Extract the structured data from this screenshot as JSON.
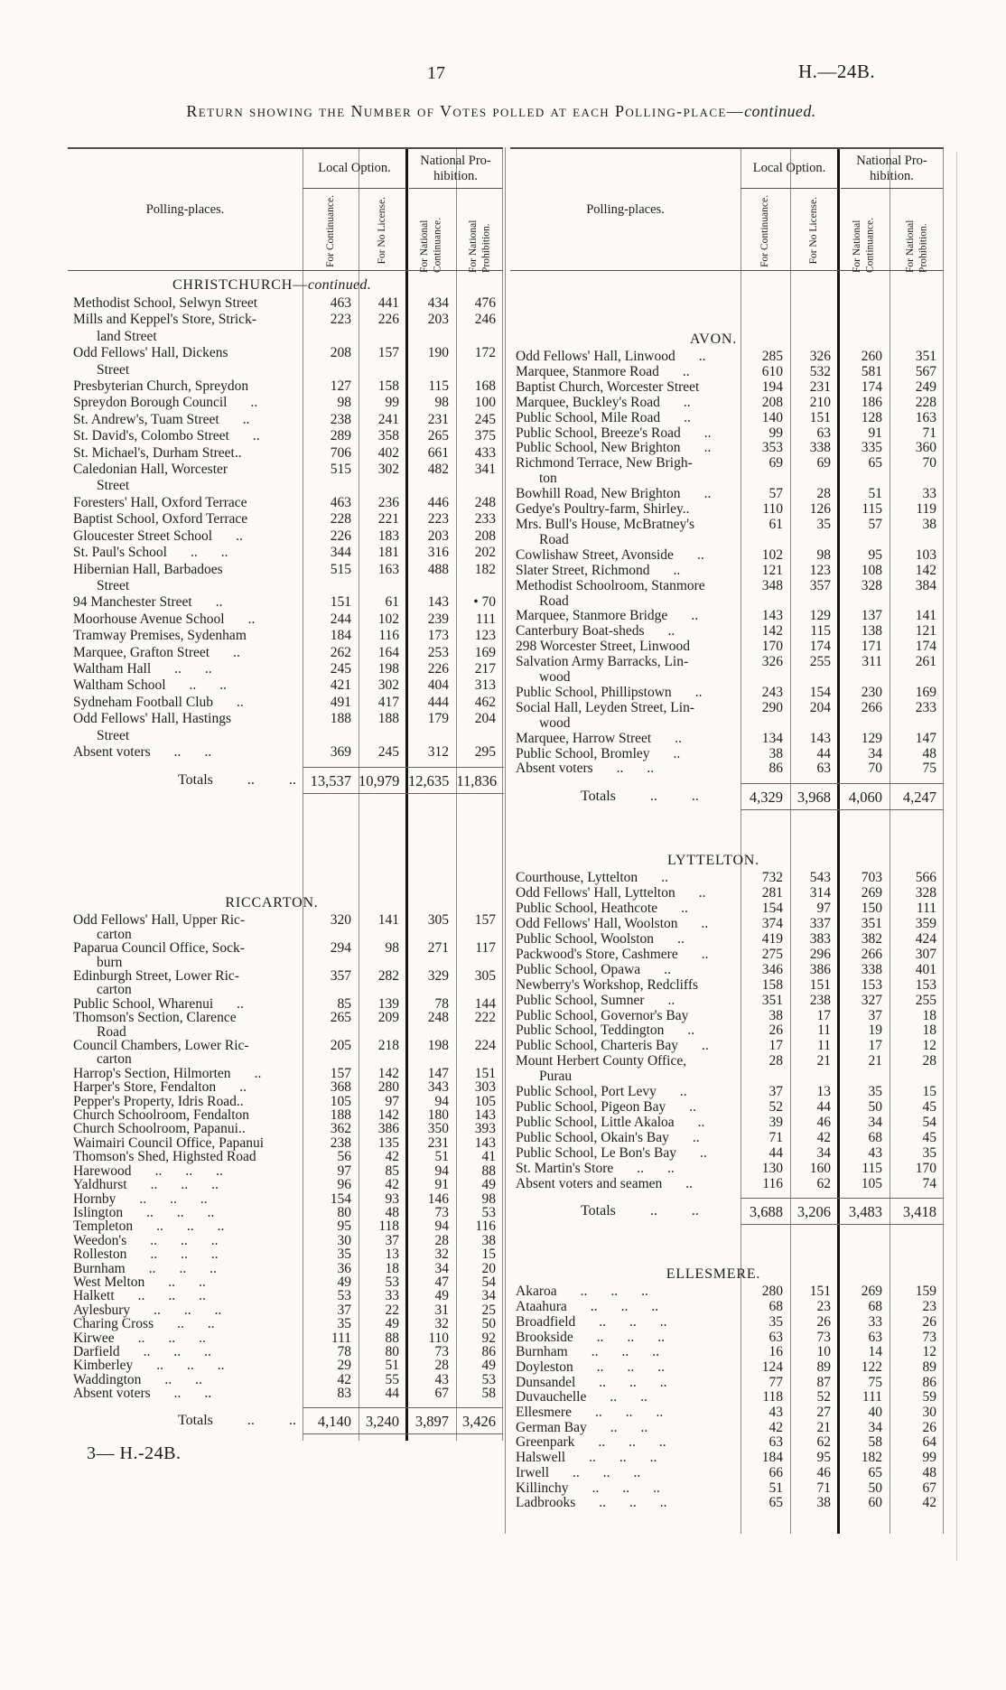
{
  "page": {
    "number": "17",
    "doc_ref": "H.—24B.",
    "footer": "3— H.-24B."
  },
  "title": {
    "main": "Return showing the Number of Votes polled at each Polling-place—",
    "italic": "continued."
  },
  "columns": {
    "polling_places": "Polling-places.",
    "local_option": "Local Option.",
    "national_prohibition": "National Pro-\nhibition.",
    "for_continuance": "For Continuance.",
    "for_no_license": "For No License.",
    "for_national_continuance": "For National Continuance.",
    "for_national_prohibition": "For National Prohibition."
  },
  "tables": [
    {
      "side": "left",
      "sections": [
        {
          "title": "CHRISTCHURCH—",
          "title_italic": "continued.",
          "rows": [
            [
              "Methodist School, Selwyn Street",
              "463",
              "441",
              "434",
              "476"
            ],
            [
              "Mills and Keppel's Store, Strick-\nland Street",
              "223",
              "226",
              "203",
              "246"
            ],
            [
              "Odd Fellows' Hall, Dickens\nStreet",
              "208",
              "157",
              "190",
              "172"
            ],
            [
              "Presbyterian Church, Spreydon",
              "127",
              "158",
              "115",
              "168"
            ],
            [
              "Spreydon Borough Council ..",
              "98",
              "99",
              "98",
              "100"
            ],
            [
              "St. Andrew's, Tuam Street ..",
              "238",
              "241",
              "231",
              "245"
            ],
            [
              "St. David's, Colombo Street ..",
              "289",
              "358",
              "265",
              "375"
            ],
            [
              "St. Michael's, Durham Street..",
              "706",
              "402",
              "661",
              "433"
            ],
            [
              "Caledonian Hall, Worcester\nStreet",
              "515",
              "302",
              "482",
              "341"
            ],
            [
              "Foresters' Hall, Oxford Terrace",
              "463",
              "236",
              "446",
              "248"
            ],
            [
              "Baptist School, Oxford Terrace",
              "228",
              "221",
              "223",
              "233"
            ],
            [
              "Gloucester Street School ..",
              "226",
              "183",
              "203",
              "208"
            ],
            [
              "St. Paul's School .. ..",
              "344",
              "181",
              "316",
              "202"
            ],
            [
              "Hibernian Hall, Barbadoes\nStreet",
              "515",
              "163",
              "488",
              "182"
            ],
            [
              "94 Manchester Street ..",
              "151",
              "61",
              "143",
              "• 70"
            ],
            [
              "Moorhouse Avenue School ..",
              "244",
              "102",
              "239",
              "111"
            ],
            [
              "Tramway Premises, Sydenham",
              "184",
              "116",
              "173",
              "123"
            ],
            [
              "Marquee, Grafton Street ..",
              "262",
              "164",
              "253",
              "169"
            ],
            [
              "Waltham Hall .. ..",
              "245",
              "198",
              "226",
              "217"
            ],
            [
              "Waltham School .. ..",
              "421",
              "302",
              "404",
              "313"
            ],
            [
              "Sydneham Football Club ..",
              "491",
              "417",
              "444",
              "462"
            ],
            [
              "Odd Fellows' Hall, Hastings\nStreet",
              "188",
              "188",
              "179",
              "204"
            ],
            [
              "Absent voters .. ..",
              "369",
              "245",
              "312",
              "295"
            ]
          ],
          "totals": {
            "label": "Totals .. ..",
            "values": [
              "13,537",
              "10,979",
              "12,635",
              "11,836"
            ]
          }
        },
        {
          "title": "RICCARTON.",
          "title_italic": "",
          "rows": [
            [
              "Odd Fellows' Hall, Upper Ric-\ncarton",
              "320",
              "141",
              "305",
              "157"
            ],
            [
              "Paparua Council Office, Sock-\nburn",
              "294",
              "98",
              "271",
              "117"
            ],
            [
              "Edinburgh Street, Lower Ric-\ncarton",
              "357",
              "282",
              "329",
              "305"
            ],
            [
              "Public School, Wharenui ..",
              "85",
              "139",
              "78",
              "144"
            ],
            [
              "Thomson's Section, Clarence\nRoad",
              "265",
              "209",
              "248",
              "222"
            ],
            [
              "Council Chambers, Lower Ric-\ncarton",
              "205",
              "218",
              "198",
              "224"
            ],
            [
              "Harrop's Section, Hilmorten ..",
              "157",
              "142",
              "147",
              "151"
            ],
            [
              "Harper's Store, Fendalton ..",
              "368",
              "280",
              "343",
              "303"
            ],
            [
              "Pepper's Property, Idris Road..",
              "105",
              "97",
              "94",
              "105"
            ],
            [
              "Church Schoolroom, Fendalton",
              "188",
              "142",
              "180",
              "143"
            ],
            [
              "Church Schoolroom, Papanui..",
              "362",
              "386",
              "350",
              "393"
            ],
            [
              "Waimairi Council Office, Papanui",
              "238",
              "135",
              "231",
              "143"
            ],
            [
              "Thomson's Shed, Highsted Road",
              "56",
              "42",
              "51",
              "41"
            ],
            [
              "Harewood .. .. ..",
              "97",
              "85",
              "94",
              "88"
            ],
            [
              "Yaldhurst .. .. ..",
              "96",
              "42",
              "91",
              "49"
            ],
            [
              "Hornby .. .. ..",
              "154",
              "93",
              "146",
              "98"
            ],
            [
              "Islington .. .. ..",
              "80",
              "48",
              "73",
              "53"
            ],
            [
              "Templeton .. .. ..",
              "95",
              "118",
              "94",
              "116"
            ],
            [
              "Weedon's .. .. ..",
              "30",
              "37",
              "28",
              "38"
            ],
            [
              "Rolleston .. .. ..",
              "35",
              "13",
              "32",
              "15"
            ],
            [
              "Burnham .. .. ..",
              "36",
              "18",
              "34",
              "20"
            ],
            [
              "West Melton .. ..",
              "49",
              "53",
              "47",
              "54"
            ],
            [
              "Halkett .. .. ..",
              "53",
              "33",
              "49",
              "34"
            ],
            [
              "Aylesbury .. .. ..",
              "37",
              "22",
              "31",
              "25"
            ],
            [
              "Charing Cross .. ..",
              "35",
              "49",
              "32",
              "50"
            ],
            [
              "Kirwee .. .. ..",
              "111",
              "88",
              "110",
              "92"
            ],
            [
              "Darfield .. .. ..",
              "78",
              "80",
              "73",
              "86"
            ],
            [
              "Kimberley .. .. ..",
              "29",
              "51",
              "28",
              "49"
            ],
            [
              "Waddington .. ..",
              "42",
              "55",
              "43",
              "53"
            ],
            [
              "Absent voters .. ..",
              "83",
              "44",
              "67",
              "58"
            ]
          ],
          "totals": {
            "label": "Totals .. ..",
            "values": [
              "4,140",
              "3,240",
              "3,897",
              "3,426"
            ]
          }
        }
      ]
    },
    {
      "side": "right",
      "sections": [
        {
          "title": "AVON.",
          "title_italic": "",
          "rows": [
            [
              "Odd Fellows' Hall, Linwood ..",
              "285",
              "326",
              "260",
              "351"
            ],
            [
              "Marquee, Stanmore Road ..",
              "610",
              "532",
              "581",
              "567"
            ],
            [
              "Baptist Church, Worcester Street",
              "194",
              "231",
              "174",
              "249"
            ],
            [
              "Marquee, Buckley's Road ..",
              "208",
              "210",
              "186",
              "228"
            ],
            [
              "Public School, Mile Road ..",
              "140",
              "151",
              "128",
              "163"
            ],
            [
              "Public School, Breeze's Road ..",
              "99",
              "63",
              "91",
              "71"
            ],
            [
              "Public School, New Brighton ..",
              "353",
              "338",
              "335",
              "360"
            ],
            [
              "Richmond Terrace, New Brigh-\nton",
              "69",
              "69",
              "65",
              "70"
            ],
            [
              "Bowhill Road, New Brighton ..",
              "57",
              "28",
              "51",
              "33"
            ],
            [
              "Gedye's Poultry-farm, Shirley..",
              "110",
              "126",
              "115",
              "119"
            ],
            [
              "Mrs. Bull's House, McBratney's\nRoad",
              "61",
              "35",
              "57",
              "38"
            ],
            [
              "Cowlishaw Street, Avonside ..",
              "102",
              "98",
              "95",
              "103"
            ],
            [
              "Slater Street, Richmond ..",
              "121",
              "123",
              "108",
              "142"
            ],
            [
              "Methodist Schoolroom, Stanmore\nRoad",
              "348",
              "357",
              "328",
              "384"
            ],
            [
              "Marquee, Stanmore Bridge ..",
              "143",
              "129",
              "137",
              "141"
            ],
            [
              "Canterbury Boat-sheds ..",
              "142",
              "115",
              "138",
              "121"
            ],
            [
              "298 Worcester Street, Linwood",
              "170",
              "174",
              "171",
              "174"
            ],
            [
              "Salvation Army Barracks, Lin-\nwood",
              "326",
              "255",
              "311",
              "261"
            ],
            [
              "Public School, Phillipstown ..",
              "243",
              "154",
              "230",
              "169"
            ],
            [
              "Social Hall, Leyden Street, Lin-\nwood",
              "290",
              "204",
              "266",
              "233"
            ],
            [
              "Marquee, Harrow Street ..",
              "134",
              "143",
              "129",
              "147"
            ],
            [
              "Public School, Bromley ..",
              "38",
              "44",
              "34",
              "48"
            ],
            [
              "Absent voters .. ..",
              "86",
              "63",
              "70",
              "75"
            ]
          ],
          "totals": {
            "label": "Totals .. ..",
            "values": [
              "4,329",
              "3,968",
              "4,060",
              "4,247"
            ]
          }
        },
        {
          "title": "LYTTELTON.",
          "title_italic": "",
          "rows": [
            [
              "Courthouse, Lyttelton ..",
              "732",
              "543",
              "703",
              "566"
            ],
            [
              "Odd Fellows' Hall, Lyttelton ..",
              "281",
              "314",
              "269",
              "328"
            ],
            [
              "Public School, Heathcote ..",
              "154",
              "97",
              "150",
              "111"
            ],
            [
              "Odd Fellows' Hall, Woolston ..",
              "374",
              "337",
              "351",
              "359"
            ],
            [
              "Public School, Woolston ..",
              "419",
              "383",
              "382",
              "424"
            ],
            [
              "Packwood's Store, Cashmere ..",
              "275",
              "296",
              "266",
              "307"
            ],
            [
              "Public School, Opawa ..",
              "346",
              "386",
              "338",
              "401"
            ],
            [
              "Newberry's Workshop, Redcliffs",
              "158",
              "151",
              "153",
              "153"
            ],
            [
              "Public School, Sumner ..",
              "351",
              "238",
              "327",
              "255"
            ],
            [
              "Public School, Governor's Bay",
              "38",
              "17",
              "37",
              "18"
            ],
            [
              "Public School, Teddington ..",
              "26",
              "11",
              "19",
              "18"
            ],
            [
              "Public School, Charteris Bay ..",
              "17",
              "11",
              "17",
              "12"
            ],
            [
              "Mount Herbert County Office,\nPurau",
              "28",
              "21",
              "21",
              "28"
            ],
            [
              "Public School, Port Levy ..",
              "37",
              "13",
              "35",
              "15"
            ],
            [
              "Public School, Pigeon Bay ..",
              "52",
              "44",
              "50",
              "45"
            ],
            [
              "Public School, Little Akaloa ..",
              "39",
              "46",
              "34",
              "54"
            ],
            [
              "Public School, Okain's Bay ..",
              "71",
              "42",
              "68",
              "45"
            ],
            [
              "Public School, Le Bon's Bay ..",
              "44",
              "34",
              "43",
              "35"
            ],
            [
              "St. Martin's Store .. ..",
              "130",
              "160",
              "115",
              "170"
            ],
            [
              "Absent voters and seamen ..",
              "116",
              "62",
              "105",
              "74"
            ]
          ],
          "totals": {
            "label": "Totals .. ..",
            "values": [
              "3,688",
              "3,206",
              "3,483",
              "3,418"
            ]
          }
        },
        {
          "title": "ELLESMERE.",
          "title_italic": "",
          "rows": [
            [
              "Akaroa .. .. ..",
              "280",
              "151",
              "269",
              "159"
            ],
            [
              "Ataahura .. .. ..",
              "68",
              "23",
              "68",
              "23"
            ],
            [
              "Broadfield .. .. ..",
              "35",
              "26",
              "33",
              "26"
            ],
            [
              "Brookside .. .. ..",
              "63",
              "73",
              "63",
              "73"
            ],
            [
              "Burnham .. .. ..",
              "16",
              "10",
              "14",
              "12"
            ],
            [
              "Doyleston .. .. ..",
              "124",
              "89",
              "122",
              "89"
            ],
            [
              "Dunsandel .. .. ..",
              "77",
              "87",
              "75",
              "86"
            ],
            [
              "Duvauchelle .. ..",
              "118",
              "52",
              "111",
              "59"
            ],
            [
              "Ellesmere .. .. ..",
              "43",
              "27",
              "40",
              "30"
            ],
            [
              "German Bay .. ..",
              "42",
              "21",
              "34",
              "26"
            ],
            [
              "Greenpark .. .. ..",
              "63",
              "62",
              "58",
              "64"
            ],
            [
              "Halswell .. .. ..",
              "184",
              "95",
              "182",
              "99"
            ],
            [
              "Irwell .. .. ..",
              "66",
              "46",
              "65",
              "48"
            ],
            [
              "Killinchy .. .. ..",
              "51",
              "71",
              "50",
              "67"
            ],
            [
              "Ladbrooks .. .. ..",
              "65",
              "38",
              "60",
              "42"
            ]
          ],
          "totals": null
        }
      ]
    }
  ]
}
